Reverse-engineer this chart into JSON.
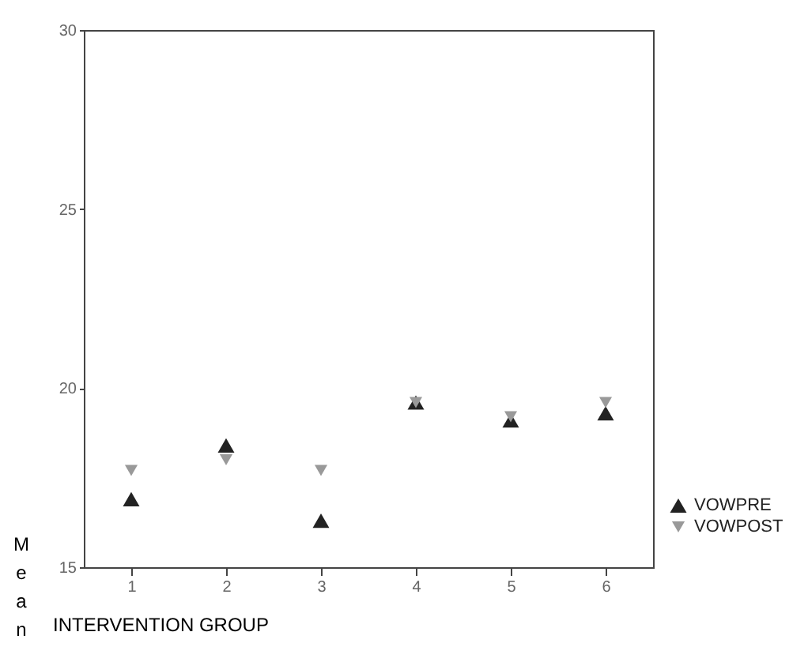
{
  "chart_data": {
    "type": "scatter",
    "xlabel": "INTERVENTION GROUP",
    "ylabel": "Mean",
    "categories": [
      "1",
      "2",
      "3",
      "4",
      "5",
      "6"
    ],
    "series": [
      {
        "name": "VOWPRE",
        "color": "#222222",
        "marker": "triangle",
        "values": [
          16.9,
          18.4,
          16.3,
          19.6,
          19.1,
          19.3
        ]
      },
      {
        "name": "VOWPOST",
        "color": "#999999",
        "marker": "triangle-down",
        "values": [
          17.7,
          18.0,
          17.7,
          19.6,
          19.2,
          19.6
        ]
      }
    ],
    "ylim": [
      15,
      30
    ],
    "yticks": [
      15,
      20,
      25,
      30
    ],
    "grid": false,
    "legend": "bottom right"
  }
}
